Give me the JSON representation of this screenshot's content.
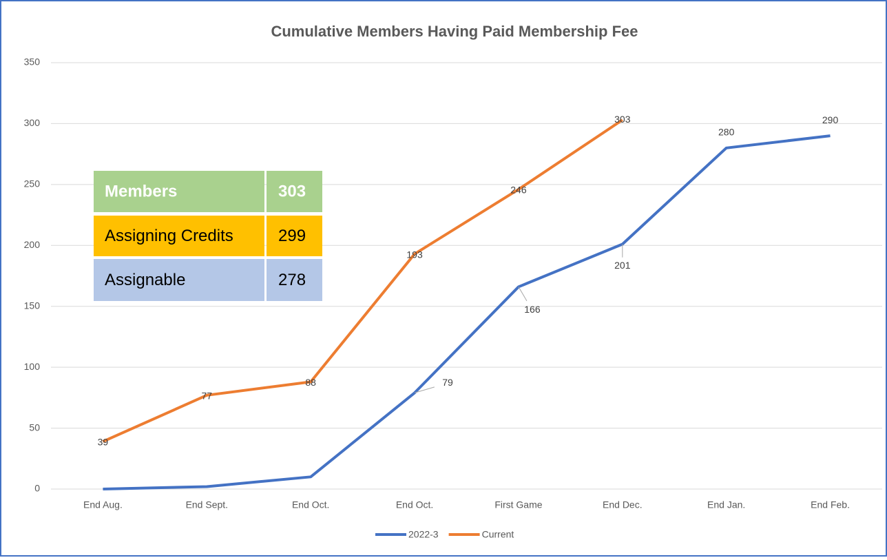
{
  "chart_data": {
    "type": "line",
    "title": "Cumulative Members Having Paid Membership Fee",
    "categories": [
      "End Aug.",
      "End Sept.",
      "End Oct.",
      "End Oct.",
      "First Game",
      "End Dec.",
      "End Jan.",
      "End Feb."
    ],
    "series": [
      {
        "name": "2022-3",
        "color": "#4472c4",
        "values": [
          0,
          2,
          10,
          79,
          166,
          201,
          280,
          290
        ],
        "data_labels": [
          false,
          false,
          false,
          true,
          true,
          true,
          true,
          true
        ]
      },
      {
        "name": "Current",
        "color": "#ed7d31",
        "values": [
          39,
          77,
          88,
          193,
          246,
          303,
          null,
          null
        ],
        "data_labels": [
          true,
          true,
          true,
          true,
          true,
          true,
          false,
          false
        ]
      }
    ],
    "ylim": [
      0,
      350
    ],
    "yticks": [
      0,
      50,
      100,
      150,
      200,
      250,
      300,
      350
    ],
    "grid": true,
    "legend": "bottom"
  },
  "table": {
    "rows": [
      [
        "Members",
        "303"
      ],
      [
        "Assigning Credits",
        "299"
      ],
      [
        "Assignable",
        "278"
      ]
    ],
    "colors": [
      "#a9d18e",
      "#ffc000",
      "#b4c7e7"
    ]
  }
}
